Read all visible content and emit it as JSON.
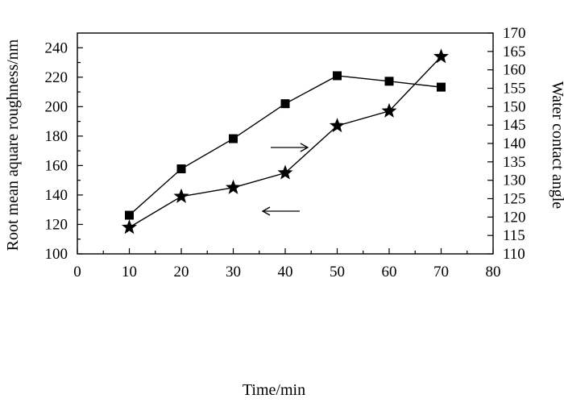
{
  "chart_data": {
    "type": "line",
    "title": "",
    "xlabel": "Time/min",
    "ylabel_left": "Root mean aquare roughness/nm",
    "ylabel_right": "Water contact angle",
    "xlim": [
      0,
      80
    ],
    "ylim_left": [
      100,
      250
    ],
    "ylim_right": [
      110,
      170
    ],
    "x_ticks": [
      0,
      10,
      20,
      30,
      40,
      50,
      60,
      70,
      80
    ],
    "y_left_ticks": [
      100,
      120,
      140,
      160,
      180,
      200,
      220,
      240
    ],
    "y_right_ticks": [
      110,
      115,
      120,
      125,
      130,
      135,
      140,
      145,
      150,
      155,
      160,
      165,
      170
    ],
    "grid": false,
    "series": [
      {
        "marker": "star",
        "axis": "left",
        "x": [
          10,
          20,
          30,
          40,
          50,
          60,
          70
        ],
        "values": [
          118,
          139,
          145,
          155,
          187,
          197,
          234
        ]
      },
      {
        "marker": "square",
        "axis": "right",
        "x": [
          10,
          20,
          30,
          40,
          50,
          60,
          70
        ],
        "values": [
          120.5,
          133.1,
          141.3,
          150.8,
          158.4,
          156.9,
          155.3
        ]
      }
    ],
    "annotations": [
      {
        "type": "arrow",
        "direction": "right",
        "points_to": "right-axis",
        "near_series": "square"
      },
      {
        "type": "arrow",
        "direction": "left",
        "points_to": "left-axis",
        "near_series": "star"
      }
    ]
  }
}
